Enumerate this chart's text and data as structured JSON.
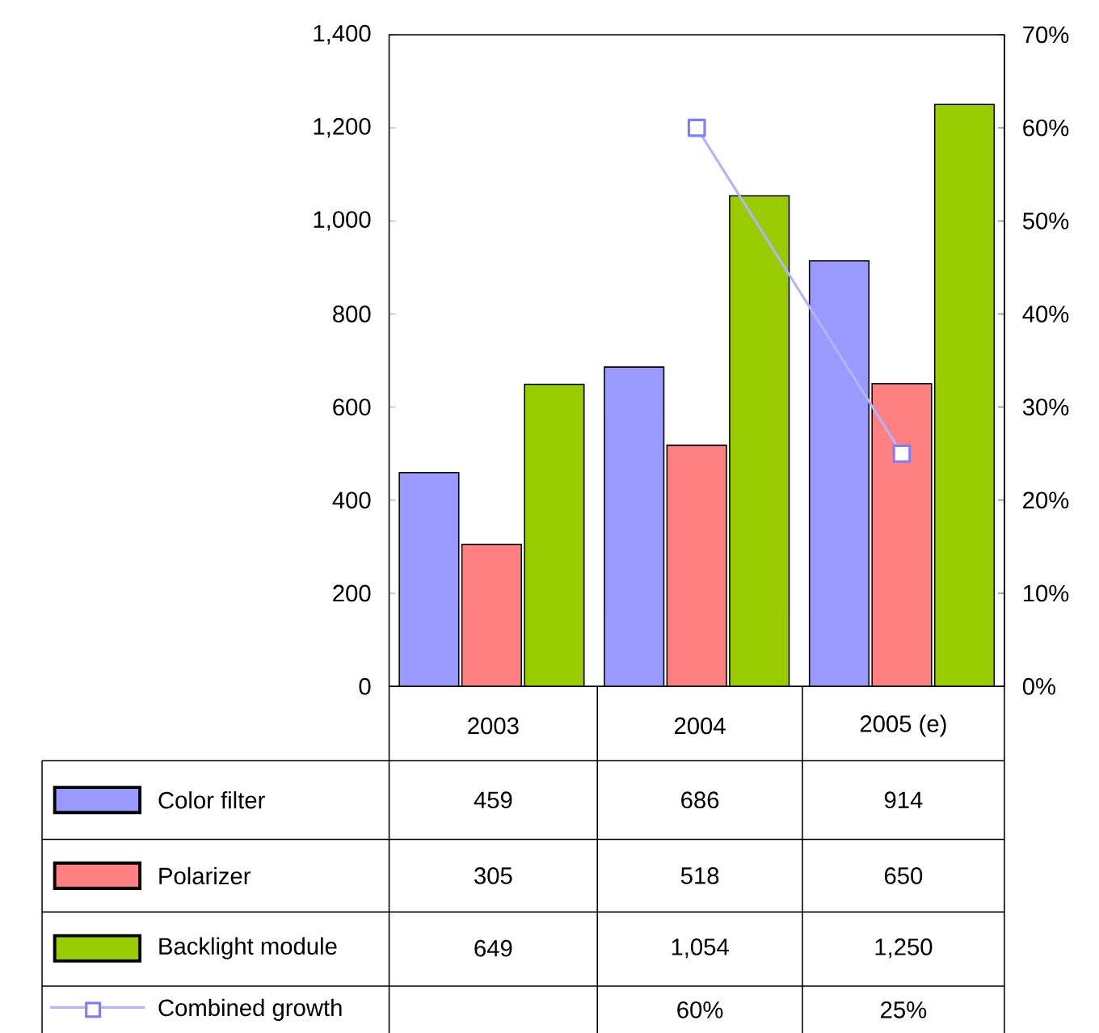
{
  "chart_data": {
    "type": "bar",
    "categories": [
      "2003",
      "2004",
      "2005 (e)"
    ],
    "series": [
      {
        "name": "Color filter",
        "color": "#9999ff",
        "values": [
          459,
          686,
          914
        ],
        "value_labels": [
          "459",
          "686",
          "914"
        ]
      },
      {
        "name": "Polarizer",
        "color": "#ff8080",
        "values": [
          305,
          518,
          650
        ],
        "value_labels": [
          "305",
          "518",
          "650"
        ]
      },
      {
        "name": "Backlight module",
        "color": "#99cc00",
        "values": [
          649,
          1054,
          1250
        ],
        "value_labels": [
          "649",
          "1,054",
          "1,250"
        ]
      },
      {
        "name": "Combined growth",
        "type": "line",
        "axis": "y2",
        "color": "#b3b3ff",
        "values": [
          null,
          60,
          25
        ],
        "value_labels": [
          null,
          "60%",
          "25%"
        ]
      }
    ],
    "ylim": [
      0,
      1400
    ],
    "yticks": [
      {
        "value": 0,
        "label": "0"
      },
      {
        "value": 200,
        "label": "200"
      },
      {
        "value": 400,
        "label": "400"
      },
      {
        "value": 600,
        "label": "600"
      },
      {
        "value": 800,
        "label": "800"
      },
      {
        "value": 1000,
        "label": "1,000"
      },
      {
        "value": 1200,
        "label": "1,200"
      },
      {
        "value": 1400,
        "label": "1,400"
      }
    ],
    "y2lim": [
      0,
      70
    ],
    "y2ticks": [
      {
        "value": 0,
        "label": "0%"
      },
      {
        "value": 10,
        "label": "10%"
      },
      {
        "value": 20,
        "label": "20%"
      },
      {
        "value": 30,
        "label": "30%"
      },
      {
        "value": 40,
        "label": "40%"
      },
      {
        "value": 50,
        "label": "50%"
      },
      {
        "value": 60,
        "label": "60%"
      },
      {
        "value": 70,
        "label": "70%"
      }
    ],
    "marker": "square",
    "legend": "bottom",
    "grid": false
  }
}
